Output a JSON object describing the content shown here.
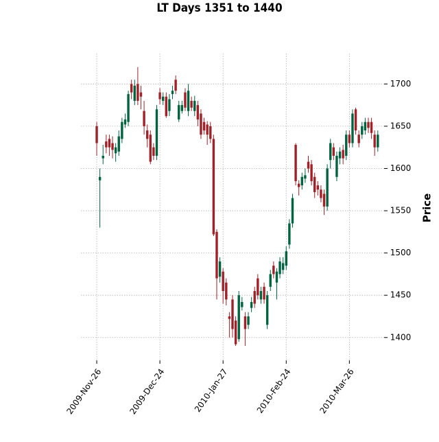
{
  "chart_data": {
    "type": "candlestick",
    "title": "LT Days 1351 to 1440",
    "y_label": "Price",
    "up_color": "#006340",
    "down_color": "#a02128",
    "grid": true,
    "y_axis_side": "right",
    "xlim": [
      -5,
      91
    ],
    "ylim": [
      1373,
      1736
    ],
    "xticks": [
      {
        "value": 0,
        "label": "2009-Nov-26"
      },
      {
        "value": 20,
        "label": "2009-Dec-24"
      },
      {
        "value": 40,
        "label": "2010-Jan-27"
      },
      {
        "value": 60,
        "label": "2010-Feb-24"
      },
      {
        "value": 80,
        "label": "2010-Mar-26"
      }
    ],
    "yticks": [
      1400,
      1450,
      1500,
      1550,
      1600,
      1650,
      1700
    ],
    "open": [
      1650,
      1586,
      1612,
      1632,
      1635,
      1630,
      1618,
      1620,
      1635,
      1652,
      1655,
      1700,
      1680,
      1700,
      1690,
      1668,
      1645,
      1640,
      1625,
      1615,
      1690,
      1680,
      1685,
      1668,
      1688,
      1705,
      1658,
      1668,
      1690,
      1668,
      1680,
      1668,
      1675,
      1665,
      1655,
      1652,
      1650,
      1635,
      1525,
      1472,
      1478,
      1465,
      1425,
      1445,
      1420,
      1398,
      1436,
      1425,
      1415,
      1435,
      1455,
      1470,
      1445,
      1460,
      1415,
      1460,
      1485,
      1465,
      1475,
      1480,
      1485,
      1510,
      1535,
      1628,
      1582,
      1580,
      1588,
      1608,
      1605,
      1590,
      1580,
      1575,
      1570,
      1555,
      1610,
      1625,
      1590,
      1612,
      1622,
      1615,
      1640,
      1630,
      1670,
      1640,
      1640,
      1645,
      1655,
      1655,
      1640,
      1625
    ],
    "high": [
      1655,
      1600,
      1628,
      1640,
      1640,
      1638,
      1630,
      1645,
      1660,
      1665,
      1692,
      1705,
      1705,
      1720,
      1698,
      1680,
      1652,
      1645,
      1630,
      1675,
      1695,
      1690,
      1690,
      1688,
      1698,
      1710,
      1680,
      1680,
      1695,
      1700,
      1685,
      1686,
      1680,
      1670,
      1660,
      1656,
      1655,
      1640,
      1528,
      1495,
      1482,
      1470,
      1430,
      1450,
      1425,
      1455,
      1448,
      1430,
      1430,
      1448,
      1460,
      1475,
      1460,
      1465,
      1455,
      1480,
      1490,
      1482,
      1495,
      1495,
      1508,
      1540,
      1570,
      1630,
      1586,
      1595,
      1600,
      1615,
      1610,
      1595,
      1585,
      1580,
      1575,
      1605,
      1635,
      1630,
      1620,
      1625,
      1628,
      1645,
      1645,
      1670,
      1672,
      1645,
      1655,
      1660,
      1660,
      1660,
      1645,
      1645
    ],
    "low": [
      1615,
      1530,
      1605,
      1618,
      1615,
      1612,
      1608,
      1615,
      1630,
      1648,
      1650,
      1682,
      1675,
      1675,
      1670,
      1640,
      1625,
      1605,
      1610,
      1610,
      1676,
      1675,
      1660,
      1662,
      1682,
      1688,
      1655,
      1665,
      1668,
      1662,
      1668,
      1662,
      1650,
      1635,
      1640,
      1628,
      1630,
      1520,
      1445,
      1465,
      1440,
      1438,
      1400,
      1400,
      1390,
      1395,
      1432,
      1390,
      1410,
      1430,
      1435,
      1445,
      1440,
      1440,
      1410,
      1455,
      1470,
      1445,
      1470,
      1475,
      1480,
      1505,
      1530,
      1580,
      1568,
      1575,
      1583,
      1595,
      1580,
      1565,
      1568,
      1560,
      1545,
      1550,
      1600,
      1610,
      1585,
      1605,
      1605,
      1610,
      1625,
      1625,
      1640,
      1625,
      1635,
      1640,
      1642,
      1635,
      1615,
      1620
    ],
    "close": [
      1630,
      1590,
      1615,
      1625,
      1625,
      1622,
      1625,
      1638,
      1655,
      1658,
      1688,
      1690,
      1698,
      1680,
      1685,
      1650,
      1635,
      1608,
      1615,
      1670,
      1682,
      1685,
      1662,
      1682,
      1692,
      1692,
      1675,
      1675,
      1672,
      1692,
      1672,
      1680,
      1658,
      1640,
      1645,
      1640,
      1635,
      1522,
      1470,
      1490,
      1455,
      1445,
      1422,
      1410,
      1392,
      1450,
      1442,
      1410,
      1425,
      1442,
      1440,
      1450,
      1455,
      1445,
      1450,
      1475,
      1475,
      1478,
      1490,
      1488,
      1502,
      1535,
      1565,
      1585,
      1578,
      1590,
      1592,
      1600,
      1585,
      1572,
      1575,
      1565,
      1555,
      1600,
      1630,
      1615,
      1615,
      1620,
      1612,
      1640,
      1630,
      1665,
      1645,
      1630,
      1650,
      1655,
      1648,
      1642,
      1625,
      1640
    ]
  }
}
